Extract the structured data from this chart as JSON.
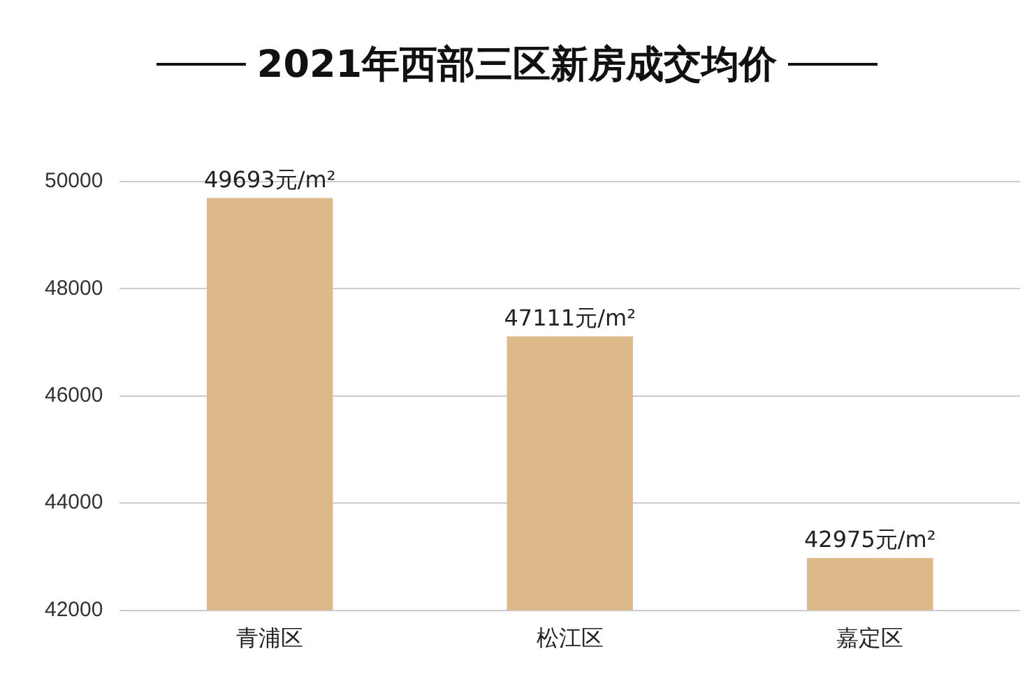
{
  "chart_data": {
    "type": "bar",
    "title": "2021年西部三区新房成交均价",
    "categories": [
      "青浦区",
      "松江区",
      "嘉定区"
    ],
    "values": [
      49693,
      47111,
      42975
    ],
    "value_labels": [
      "49693元/m²",
      "47111元/m²",
      "42975元/m²"
    ],
    "color": "#ddb888",
    "ylim": [
      42000,
      50000
    ],
    "yticks": [
      42000,
      44000,
      46000,
      48000,
      50000
    ],
    "grid": "y"
  }
}
